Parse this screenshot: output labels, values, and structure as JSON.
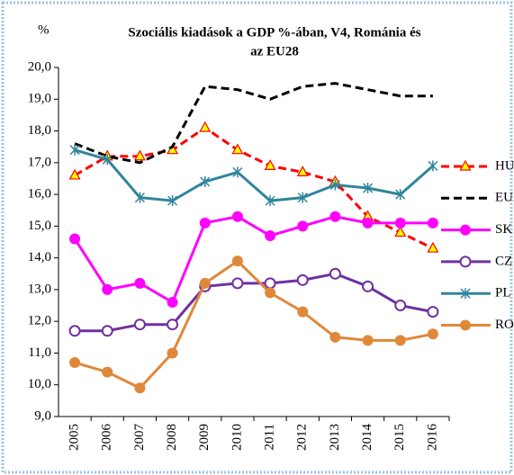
{
  "chart_data": {
    "type": "line",
    "title": [
      "Szociális  kiadások a  GDP %-ában, V4, Románia és",
      "az EU28"
    ],
    "y_label": "%",
    "categories": [
      "2005",
      "2006",
      "2007",
      "2008",
      "2009",
      "2010",
      "2011",
      "2012",
      "2013",
      "2014",
      "2015",
      "2016"
    ],
    "ylim": [
      9,
      20
    ],
    "yticks": [
      {
        "value": 9,
        "label": "9,0"
      },
      {
        "value": 10,
        "label": "10,0"
      },
      {
        "value": 11,
        "label": "11,0"
      },
      {
        "value": 12,
        "label": "12,0"
      },
      {
        "value": 13,
        "label": "13,0"
      },
      {
        "value": 14,
        "label": "14,0"
      },
      {
        "value": 15,
        "label": "15,0"
      },
      {
        "value": 16,
        "label": "16,0"
      },
      {
        "value": 17,
        "label": "17,0"
      },
      {
        "value": 18,
        "label": "18,0"
      },
      {
        "value": 19,
        "label": "19,0"
      },
      {
        "value": 20,
        "label": "20,0"
      }
    ],
    "legend": "right",
    "series": [
      {
        "name": "HU",
        "color": "#ff0000",
        "dash": true,
        "marker": "triangle",
        "values": [
          16.6,
          17.2,
          17.2,
          17.4,
          18.1,
          17.4,
          16.9,
          16.7,
          16.4,
          15.3,
          14.8,
          14.3
        ]
      },
      {
        "name": "EU28",
        "color": "#000000",
        "dash": true,
        "marker": "none",
        "values": [
          17.6,
          17.2,
          17.0,
          17.5,
          19.4,
          19.3,
          19.0,
          19.4,
          19.5,
          19.3,
          19.1,
          19.1
        ]
      },
      {
        "name": "SK",
        "color": "#ff00ff",
        "dash": false,
        "marker": "circle",
        "values": [
          14.6,
          13.0,
          13.2,
          12.6,
          15.1,
          15.3,
          14.7,
          15.0,
          15.3,
          15.1,
          15.1,
          15.1
        ]
      },
      {
        "name": "CZ",
        "color": "#7030a0",
        "dash": false,
        "marker": "hollow-circle",
        "values": [
          11.7,
          11.7,
          11.9,
          11.9,
          13.1,
          13.2,
          13.2,
          13.3,
          13.5,
          13.1,
          12.5,
          12.3
        ]
      },
      {
        "name": "PL",
        "color": "#31859c",
        "dash": false,
        "marker": "asterisk",
        "values": [
          17.4,
          17.1,
          15.9,
          15.8,
          16.4,
          16.7,
          15.8,
          15.9,
          16.3,
          16.2,
          16.0,
          16.9
        ]
      },
      {
        "name": "RO",
        "color": "#e0883a",
        "dash": false,
        "marker": "circle",
        "values": [
          10.7,
          10.4,
          9.9,
          11.0,
          13.2,
          13.9,
          12.9,
          12.3,
          11.5,
          11.4,
          11.4,
          11.6
        ]
      }
    ]
  }
}
